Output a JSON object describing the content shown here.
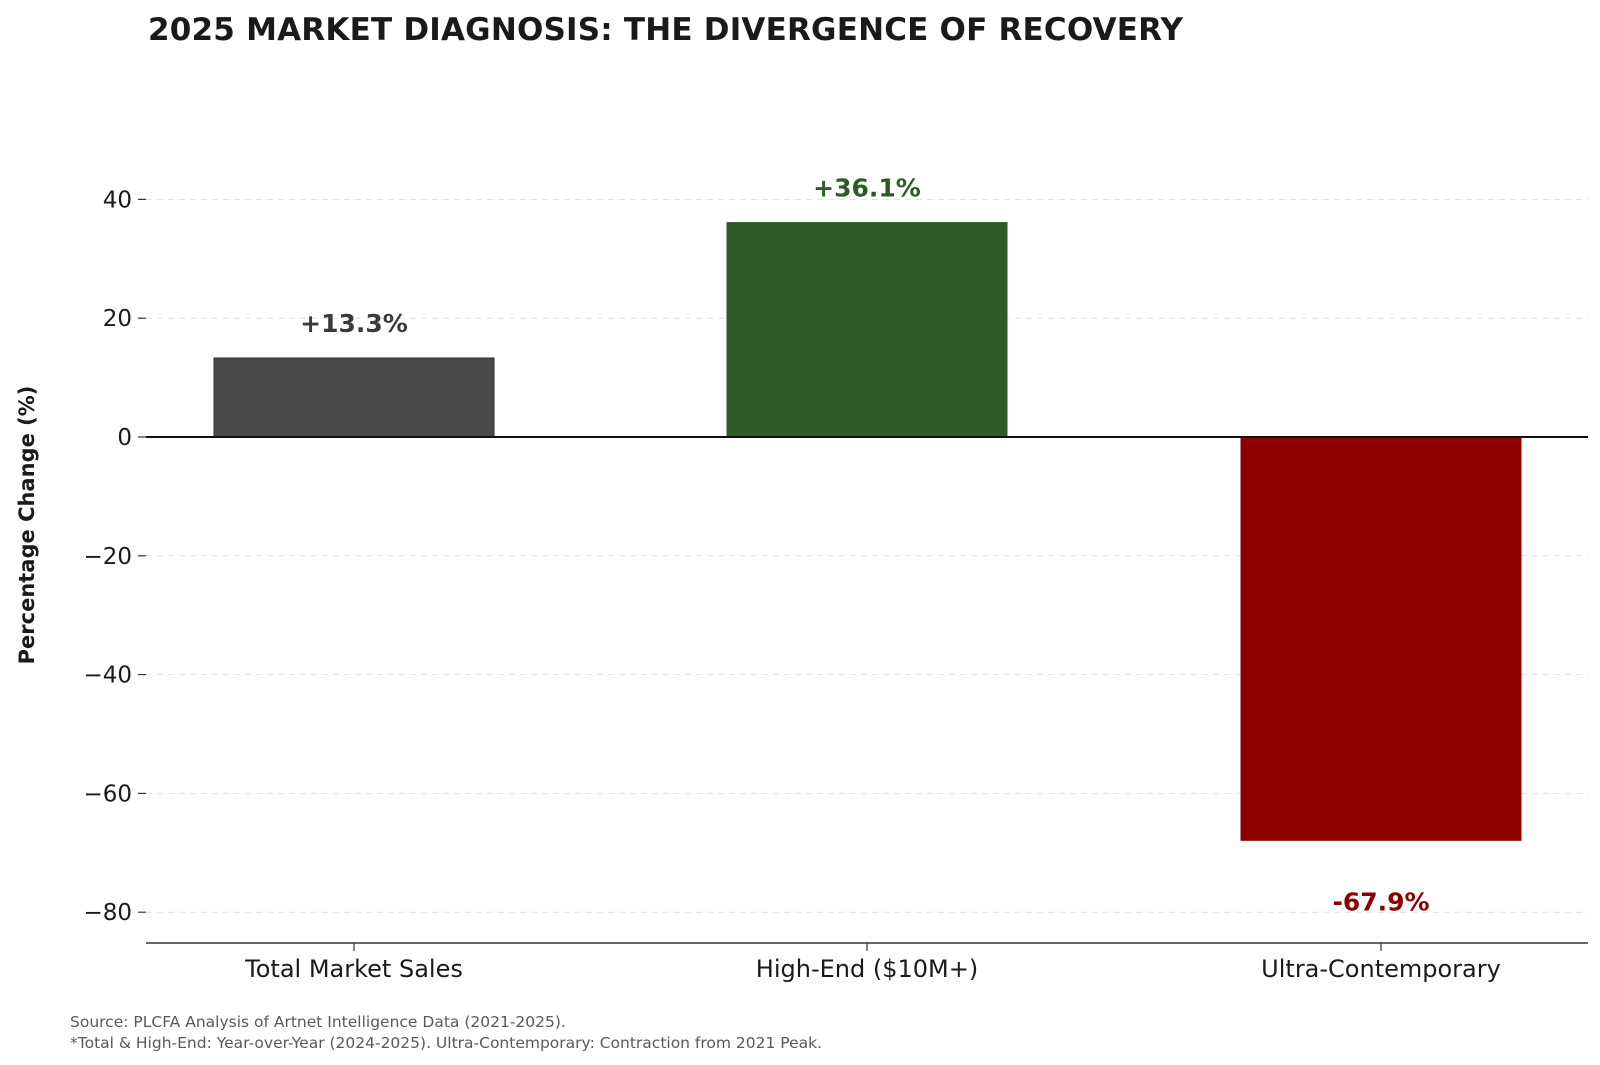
{
  "chart_data": {
    "type": "bar",
    "title": "2025 MARKET DIAGNOSIS: THE DIVERGENCE OF RECOVERY",
    "xlabel": "",
    "ylabel": "Percentage Change (%)",
    "categories": [
      "Total Market Sales",
      "High-End ($10M+)",
      "Ultra-Contemporary"
    ],
    "values": [
      13.3,
      36.1,
      -67.9
    ],
    "value_labels": [
      "+13.3%",
      "+36.1%",
      "-67.9%"
    ],
    "colors": [
      "#4a4a4a",
      "#2d5a27",
      "#8b0000"
    ],
    "ylim": [
      -85,
      50
    ],
    "yticks": [
      40,
      20,
      0,
      -20,
      -40,
      -60,
      -80
    ],
    "ytick_labels": [
      "40",
      "20",
      "0",
      "−20",
      "−40",
      "−60",
      "−80"
    ],
    "grid": "horizontal-dashed",
    "zero_line": true
  },
  "footnotes": {
    "source": "Source: PLCFA Analysis of Artnet Intelligence Data (2021-2025).",
    "note": "*Total & High-End: Year-over-Year (2024-2025). Ultra-Contemporary: Contraction from 2021 Peak."
  }
}
